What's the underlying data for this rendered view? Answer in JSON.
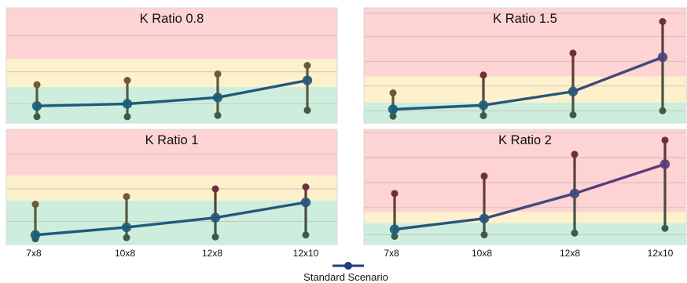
{
  "chart_data": [
    {
      "type": "line",
      "title": "K Ratio 0.8",
      "categories": [
        "7x8",
        "10x8",
        "12x8",
        "12x10"
      ],
      "series": [
        {
          "name": "Standard Scenario",
          "values": [
            1.1,
            1.15,
            1.3,
            1.7
          ],
          "low": [
            0.85,
            0.85,
            0.88,
            1.0
          ],
          "high": [
            1.6,
            1.7,
            1.85,
            2.05
          ]
        }
      ],
      "ylim": [
        0.7,
        3.4
      ],
      "bands": [
        {
          "from": 0.7,
          "to": 1.55,
          "color": "#cdeedd"
        },
        {
          "from": 1.55,
          "to": 2.2,
          "color": "#fdf1cc"
        },
        {
          "from": 2.2,
          "to": 3.4,
          "color": "#fdd3d3"
        }
      ],
      "gridlines": [
        1.15,
        1.9,
        2.75
      ]
    },
    {
      "type": "line",
      "title": "K Ratio 1.5",
      "categories": [
        "7x8",
        "10x8",
        "12x8",
        "12x10"
      ],
      "series": [
        {
          "name": "Standard Scenario",
          "values": [
            1.2,
            1.35,
            1.85,
            3.1
          ],
          "low": [
            0.95,
            0.97,
            1.0,
            1.15
          ],
          "high": [
            1.8,
            2.45,
            3.25,
            4.4
          ]
        }
      ],
      "ylim": [
        0.7,
        4.9
      ],
      "bands": [
        {
          "from": 0.7,
          "to": 1.45,
          "color": "#cdeedd"
        },
        {
          "from": 1.45,
          "to": 2.4,
          "color": "#fdf1cc"
        },
        {
          "from": 2.4,
          "to": 4.9,
          "color": "#fdd3d3"
        }
      ],
      "gridlines": [
        1.15,
        2.05,
        2.95,
        3.85,
        4.7
      ]
    },
    {
      "type": "line",
      "title": "K Ratio 1",
      "categories": [
        "7x8",
        "10x8",
        "12x8",
        "12x10"
      ],
      "series": [
        {
          "name": "Standard Scenario",
          "values": [
            1.05,
            1.25,
            1.5,
            1.9
          ],
          "low": [
            0.95,
            0.98,
            1.0,
            1.05
          ],
          "high": [
            1.85,
            2.05,
            2.25,
            2.3
          ]
        }
      ],
      "ylim": [
        0.8,
        3.8
      ],
      "bands": [
        {
          "from": 0.8,
          "to": 1.95,
          "color": "#cdeedd"
        },
        {
          "from": 1.95,
          "to": 2.6,
          "color": "#fdf1cc"
        },
        {
          "from": 2.6,
          "to": 3.8,
          "color": "#fdd3d3"
        }
      ],
      "gridlines": [
        1.4,
        2.25,
        3.15
      ]
    },
    {
      "type": "line",
      "title": "K Ratio 2",
      "categories": [
        "7x8",
        "10x8",
        "12x8",
        "12x10"
      ],
      "series": [
        {
          "name": "Standard Scenario",
          "values": [
            1.3,
            1.8,
            2.95,
            4.3
          ],
          "low": [
            0.98,
            1.05,
            1.13,
            1.35
          ],
          "high": [
            2.95,
            3.75,
            4.75,
            5.4
          ]
        }
      ],
      "ylim": [
        0.6,
        5.9
      ],
      "bands": [
        {
          "from": 0.6,
          "to": 1.6,
          "color": "#cdeedd"
        },
        {
          "from": 1.6,
          "to": 2.1,
          "color": "#fdf1cc"
        },
        {
          "from": 2.1,
          "to": 5.9,
          "color": "#fdd3d3"
        }
      ],
      "gridlines": [
        1.05,
        2.3,
        3.45,
        4.6,
        5.75
      ]
    }
  ],
  "legend": {
    "label": "Standard Scenario",
    "position": "bottom-center"
  },
  "colors": {
    "line_start": "#1c5d7a",
    "line_end": "#5a3c7a",
    "marker": "#3d5a6e",
    "whisker_low": "#3d5a4a",
    "whisker_high": "#6e2f3a",
    "legend_line": "#1f3f78",
    "gridline": "#c8b8b8",
    "panel_border": "#d8d8d8"
  }
}
